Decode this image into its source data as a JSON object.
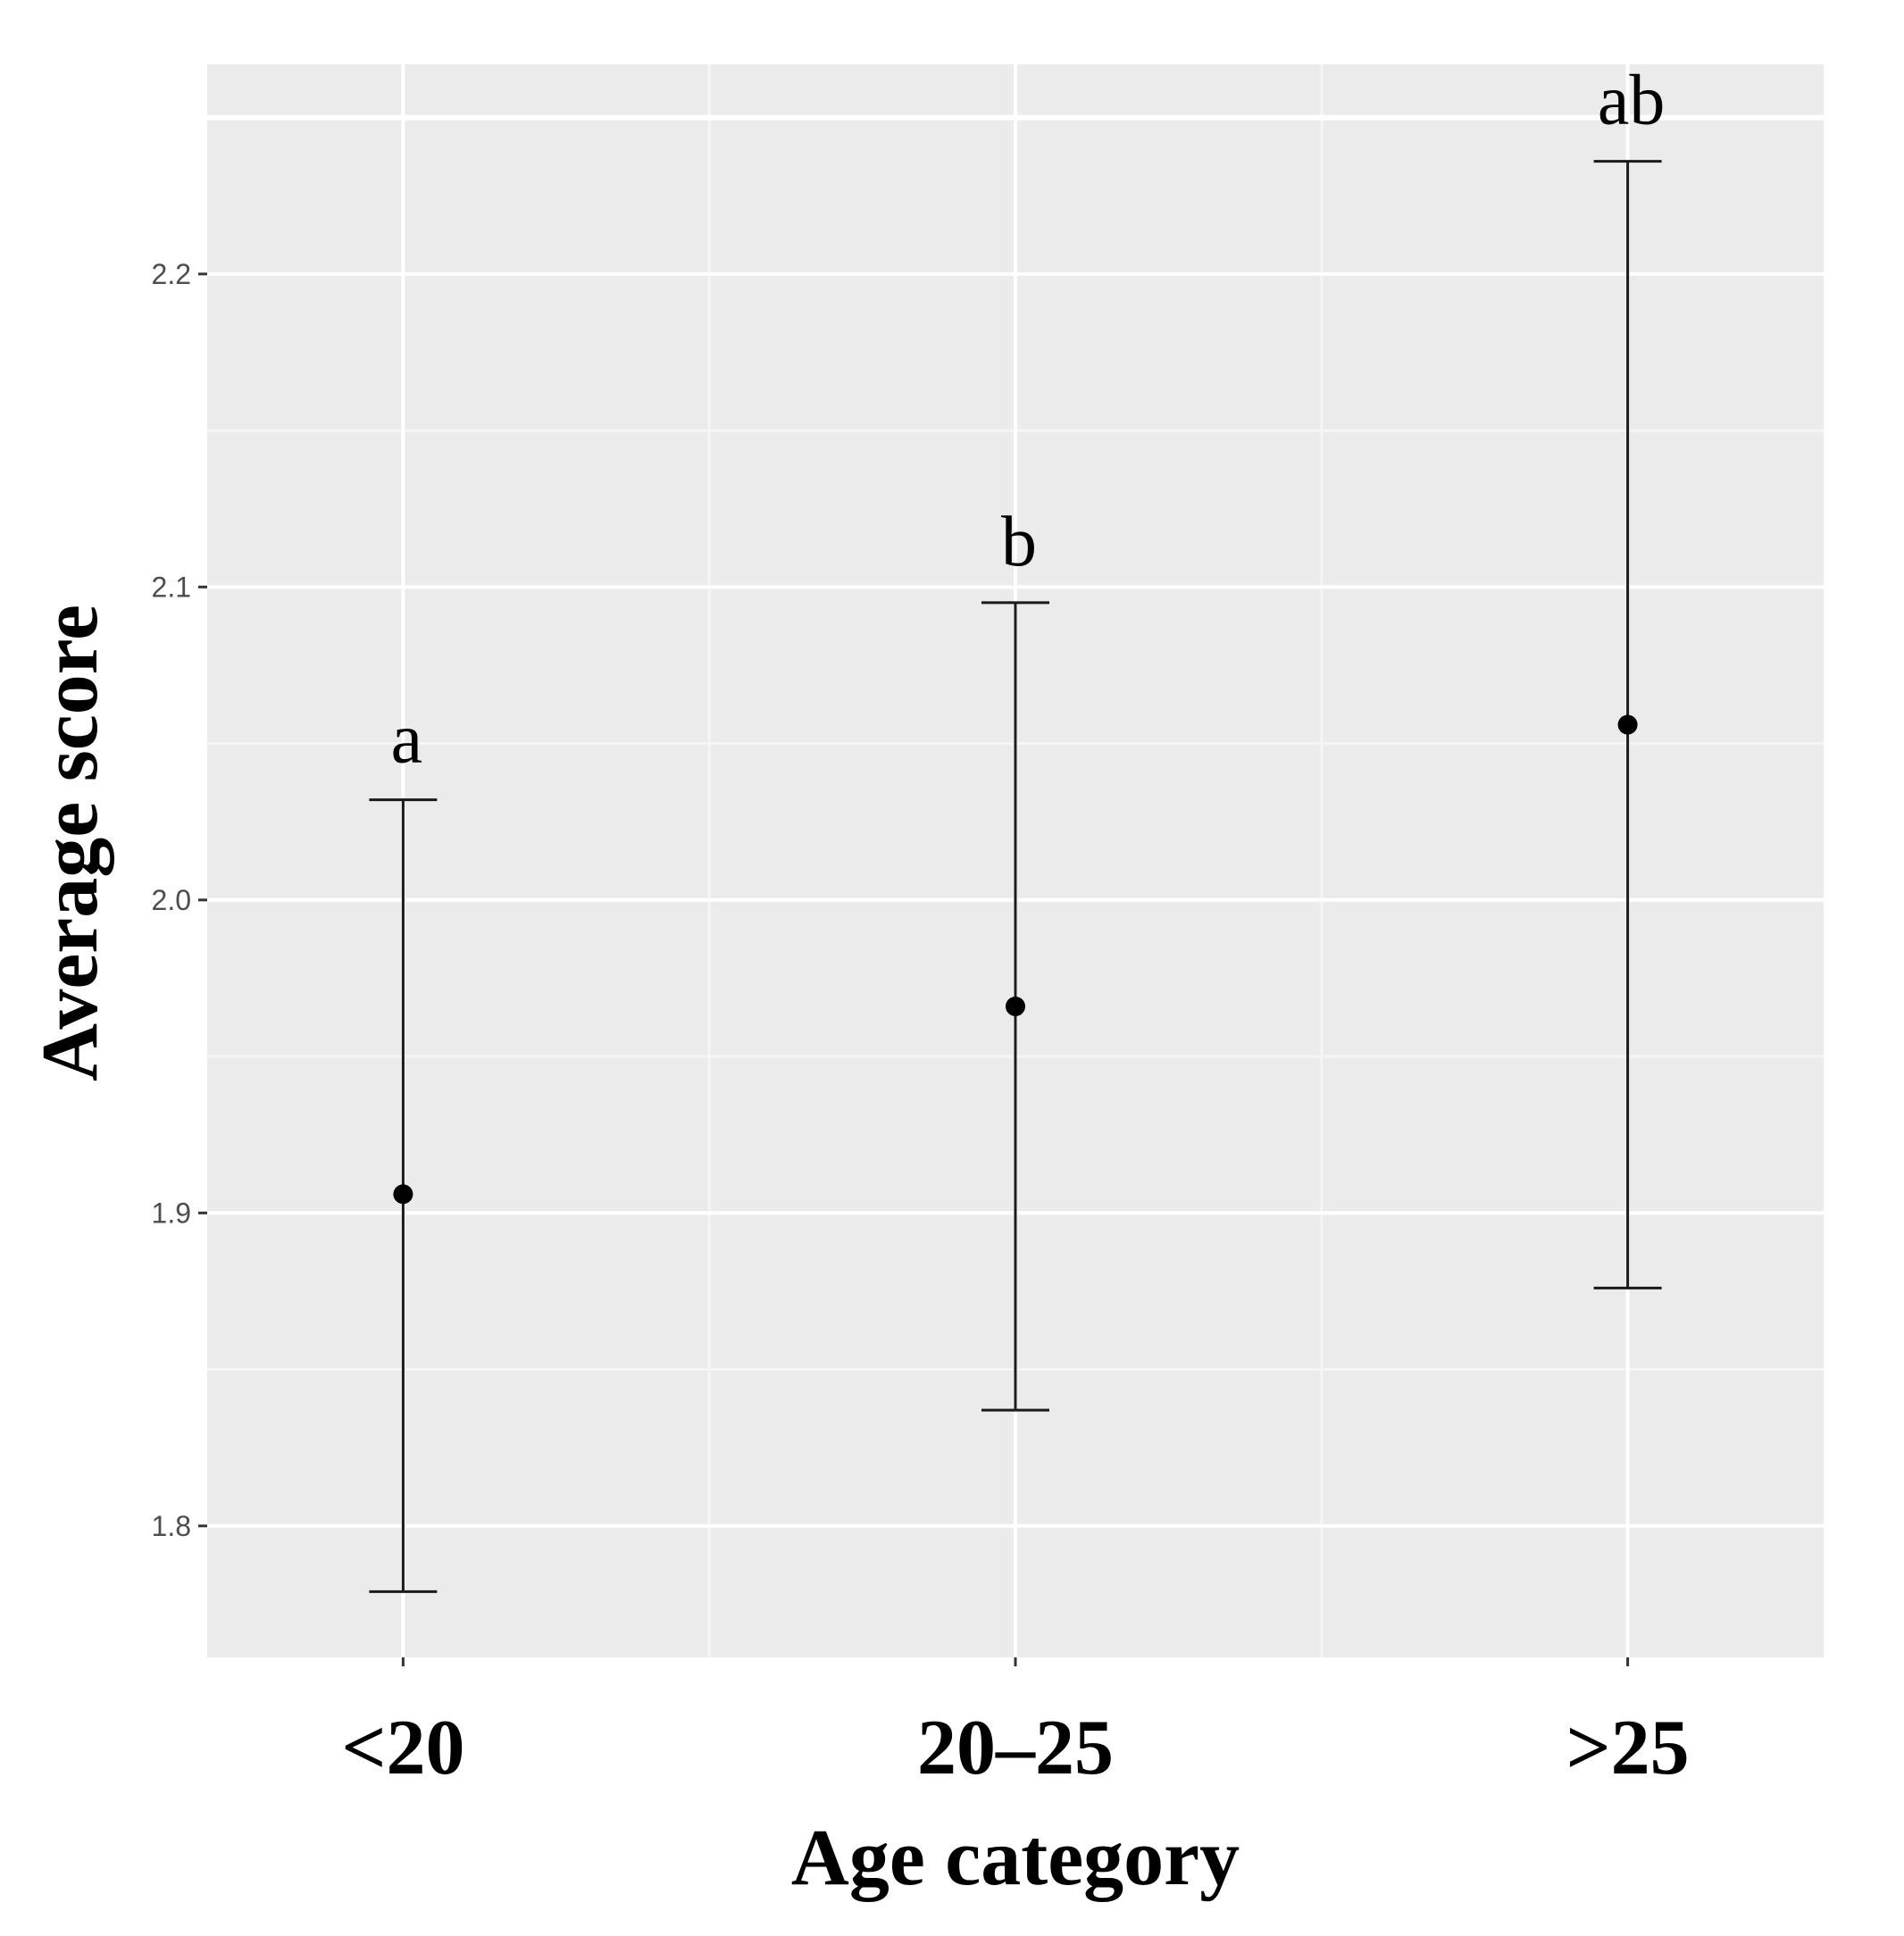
{
  "chart_data": {
    "type": "scatter",
    "subtype": "point-with-error-bars",
    "title": "",
    "xlabel": "Age category",
    "ylabel": "Average score",
    "categories": [
      "<20",
      "20–25",
      ">25"
    ],
    "points": [
      {
        "category": "<20",
        "mean": 1.906,
        "lower": 1.779,
        "upper": 2.032,
        "label": "a"
      },
      {
        "category": "20–25",
        "mean": 1.966,
        "lower": 1.837,
        "upper": 2.095,
        "label": "b"
      },
      {
        "category": ">25",
        "mean": 2.056,
        "lower": 1.876,
        "upper": 2.236,
        "label": "ab"
      }
    ],
    "ylim": [
      1.758,
      2.267
    ],
    "yticks": [
      1.8,
      1.9,
      2.0,
      2.1,
      2.2
    ],
    "ytick_labels": [
      "1.8",
      "1.9",
      "2.0",
      "2.1",
      "2.2"
    ],
    "grid": true,
    "legend": "none",
    "colors": {
      "panel_background": "#ebebeb",
      "grid_major": "#ffffff",
      "grid_minor": "#f5f5f5",
      "points": "#000000",
      "error_bars": "#1a1a1a",
      "tick_text": "#4d4d4d"
    }
  }
}
